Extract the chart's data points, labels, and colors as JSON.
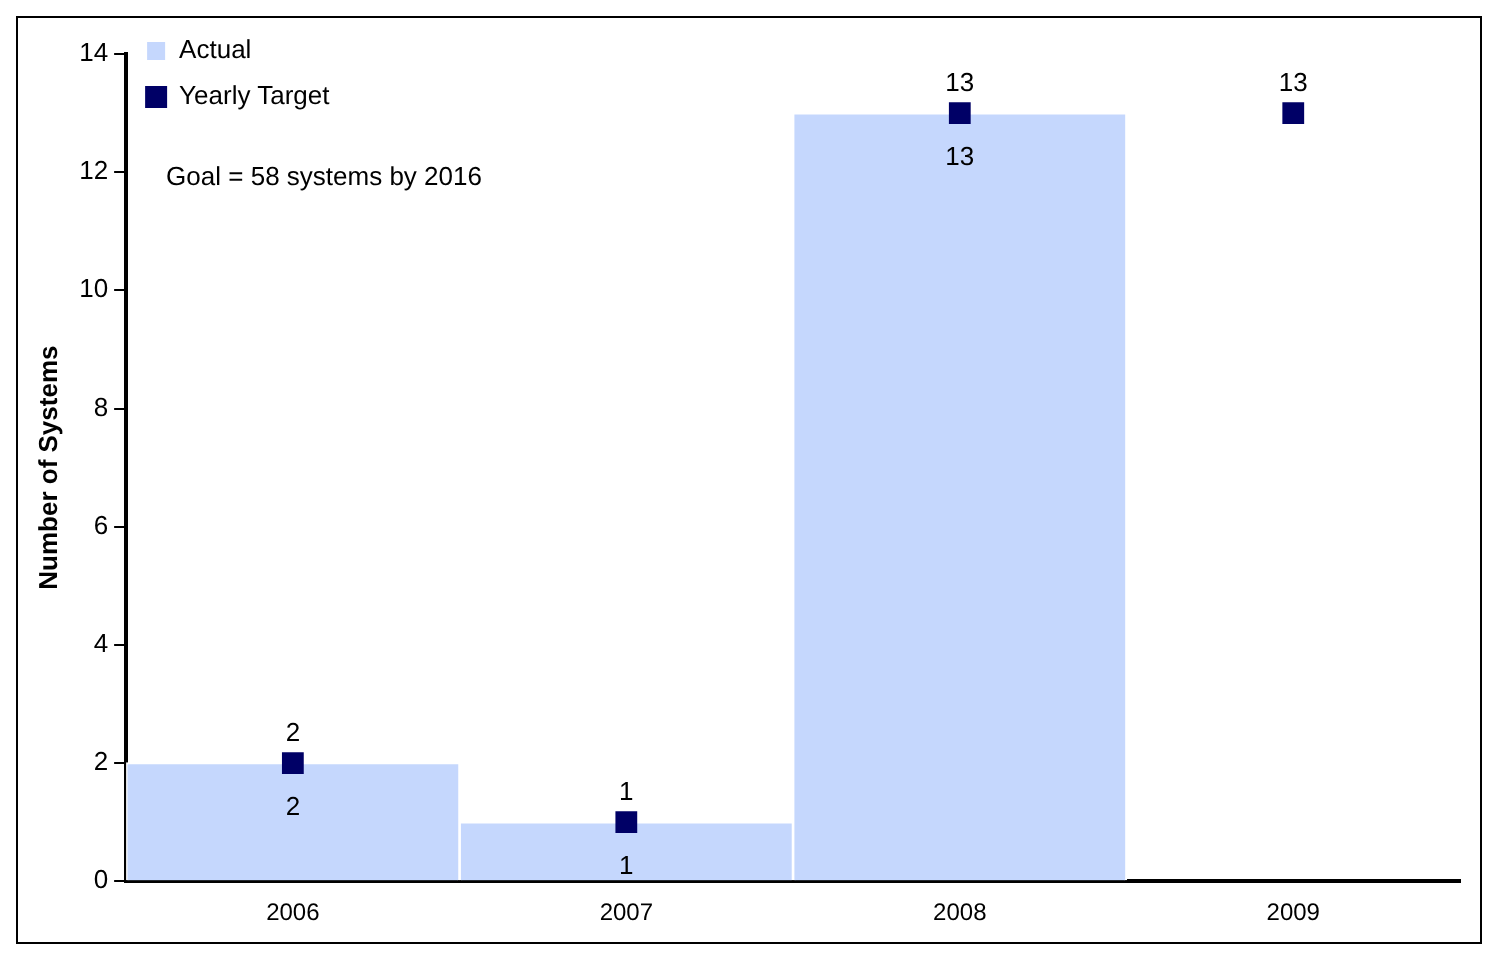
{
  "chart_data": {
    "type": "bar",
    "categories": [
      "2006",
      "2007",
      "2008",
      "2009"
    ],
    "ylabel": "Number of Systems",
    "ylim": [
      0,
      14
    ],
    "yticks": [
      0,
      2,
      4,
      6,
      8,
      10,
      12,
      14
    ],
    "grid": false,
    "legend": "top left",
    "data_labels": true,
    "marker": "square",
    "annotations": [
      "Goal = 58 systems by 2016"
    ],
    "series": [
      {
        "name": "Actual",
        "color": "#c5d7fd",
        "values": [
          2,
          1,
          13,
          null
        ]
      },
      {
        "name": "Yearly Target",
        "type": "scatter",
        "color": "#000066",
        "values": [
          2,
          1,
          13,
          13
        ]
      }
    ]
  }
}
